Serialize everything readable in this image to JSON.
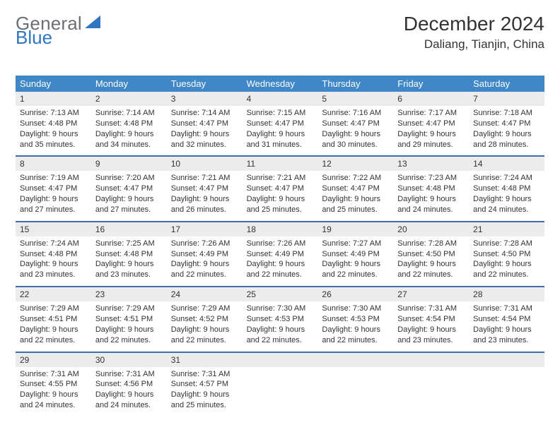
{
  "logo": {
    "part1": "General",
    "part2": "Blue"
  },
  "title": "December 2024",
  "location": "Daliang, Tianjin, China",
  "colors": {
    "header_bg": "#3f87c7",
    "week_divider": "#3f6fa6",
    "daynum_bg": "#ececec",
    "logo_gray": "#6b6f73",
    "logo_blue": "#2f77c0"
  },
  "dow": [
    "Sunday",
    "Monday",
    "Tuesday",
    "Wednesday",
    "Thursday",
    "Friday",
    "Saturday"
  ],
  "weeks": [
    [
      {
        "n": "1",
        "sunrise": "7:13 AM",
        "sunset": "4:48 PM",
        "day": "9 hours and 35 minutes."
      },
      {
        "n": "2",
        "sunrise": "7:14 AM",
        "sunset": "4:48 PM",
        "day": "9 hours and 34 minutes."
      },
      {
        "n": "3",
        "sunrise": "7:14 AM",
        "sunset": "4:47 PM",
        "day": "9 hours and 32 minutes."
      },
      {
        "n": "4",
        "sunrise": "7:15 AM",
        "sunset": "4:47 PM",
        "day": "9 hours and 31 minutes."
      },
      {
        "n": "5",
        "sunrise": "7:16 AM",
        "sunset": "4:47 PM",
        "day": "9 hours and 30 minutes."
      },
      {
        "n": "6",
        "sunrise": "7:17 AM",
        "sunset": "4:47 PM",
        "day": "9 hours and 29 minutes."
      },
      {
        "n": "7",
        "sunrise": "7:18 AM",
        "sunset": "4:47 PM",
        "day": "9 hours and 28 minutes."
      }
    ],
    [
      {
        "n": "8",
        "sunrise": "7:19 AM",
        "sunset": "4:47 PM",
        "day": "9 hours and 27 minutes."
      },
      {
        "n": "9",
        "sunrise": "7:20 AM",
        "sunset": "4:47 PM",
        "day": "9 hours and 27 minutes."
      },
      {
        "n": "10",
        "sunrise": "7:21 AM",
        "sunset": "4:47 PM",
        "day": "9 hours and 26 minutes."
      },
      {
        "n": "11",
        "sunrise": "7:21 AM",
        "sunset": "4:47 PM",
        "day": "9 hours and 25 minutes."
      },
      {
        "n": "12",
        "sunrise": "7:22 AM",
        "sunset": "4:47 PM",
        "day": "9 hours and 25 minutes."
      },
      {
        "n": "13",
        "sunrise": "7:23 AM",
        "sunset": "4:48 PM",
        "day": "9 hours and 24 minutes."
      },
      {
        "n": "14",
        "sunrise": "7:24 AM",
        "sunset": "4:48 PM",
        "day": "9 hours and 24 minutes."
      }
    ],
    [
      {
        "n": "15",
        "sunrise": "7:24 AM",
        "sunset": "4:48 PM",
        "day": "9 hours and 23 minutes."
      },
      {
        "n": "16",
        "sunrise": "7:25 AM",
        "sunset": "4:48 PM",
        "day": "9 hours and 23 minutes."
      },
      {
        "n": "17",
        "sunrise": "7:26 AM",
        "sunset": "4:49 PM",
        "day": "9 hours and 22 minutes."
      },
      {
        "n": "18",
        "sunrise": "7:26 AM",
        "sunset": "4:49 PM",
        "day": "9 hours and 22 minutes."
      },
      {
        "n": "19",
        "sunrise": "7:27 AM",
        "sunset": "4:49 PM",
        "day": "9 hours and 22 minutes."
      },
      {
        "n": "20",
        "sunrise": "7:28 AM",
        "sunset": "4:50 PM",
        "day": "9 hours and 22 minutes."
      },
      {
        "n": "21",
        "sunrise": "7:28 AM",
        "sunset": "4:50 PM",
        "day": "9 hours and 22 minutes."
      }
    ],
    [
      {
        "n": "22",
        "sunrise": "7:29 AM",
        "sunset": "4:51 PM",
        "day": "9 hours and 22 minutes."
      },
      {
        "n": "23",
        "sunrise": "7:29 AM",
        "sunset": "4:51 PM",
        "day": "9 hours and 22 minutes."
      },
      {
        "n": "24",
        "sunrise": "7:29 AM",
        "sunset": "4:52 PM",
        "day": "9 hours and 22 minutes."
      },
      {
        "n": "25",
        "sunrise": "7:30 AM",
        "sunset": "4:53 PM",
        "day": "9 hours and 22 minutes."
      },
      {
        "n": "26",
        "sunrise": "7:30 AM",
        "sunset": "4:53 PM",
        "day": "9 hours and 22 minutes."
      },
      {
        "n": "27",
        "sunrise": "7:31 AM",
        "sunset": "4:54 PM",
        "day": "9 hours and 23 minutes."
      },
      {
        "n": "28",
        "sunrise": "7:31 AM",
        "sunset": "4:54 PM",
        "day": "9 hours and 23 minutes."
      }
    ],
    [
      {
        "n": "29",
        "sunrise": "7:31 AM",
        "sunset": "4:55 PM",
        "day": "9 hours and 24 minutes."
      },
      {
        "n": "30",
        "sunrise": "7:31 AM",
        "sunset": "4:56 PM",
        "day": "9 hours and 24 minutes."
      },
      {
        "n": "31",
        "sunrise": "7:31 AM",
        "sunset": "4:57 PM",
        "day": "9 hours and 25 minutes."
      },
      null,
      null,
      null,
      null
    ]
  ],
  "labels": {
    "sunrise": "Sunrise:",
    "sunset": "Sunset:",
    "daylight": "Daylight:"
  }
}
